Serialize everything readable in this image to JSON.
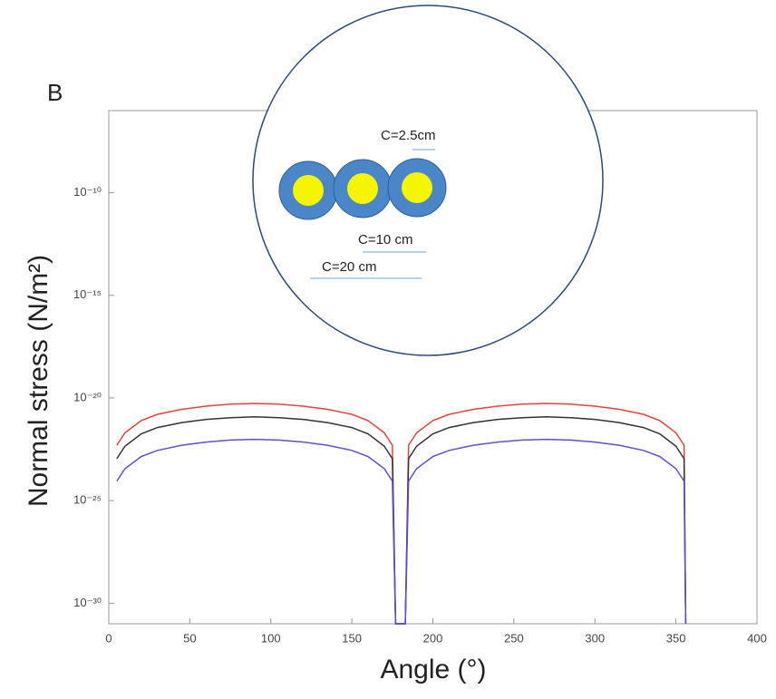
{
  "chart_data": {
    "type": "line",
    "panel_label": "B",
    "xlabel": "Angle (°)",
    "ylabel": "Normal stress (N/m²)",
    "x": [
      5,
      10,
      20,
      30,
      45,
      60,
      75,
      90,
      105,
      120,
      135,
      150,
      160,
      170,
      175,
      177,
      183,
      185,
      190,
      200,
      210,
      225,
      240,
      255,
      270,
      285,
      300,
      315,
      330,
      340,
      350,
      355,
      356
    ],
    "series": [
      {
        "color": "#e8413c",
        "values": [
          5e-23,
          2e-22,
          7.9e-22,
          1.6e-21,
          2.8e-21,
          4e-21,
          5e-21,
          5.4e-21,
          5e-21,
          4e-21,
          2.8e-21,
          1.6e-21,
          7.9e-22,
          2e-22,
          5e-23,
          1e-31,
          1e-31,
          5e-23,
          2e-22,
          7.9e-22,
          1.6e-21,
          2.8e-21,
          4e-21,
          5e-21,
          5.4e-21,
          5e-21,
          4e-21,
          2.8e-21,
          1.6e-21,
          7.9e-22,
          2e-22,
          5e-23,
          1e-31
        ]
      },
      {
        "color": "#333333",
        "values": [
          1.1e-23,
          4.5e-23,
          1.8e-22,
          3.6e-22,
          6.3e-22,
          9e-22,
          1.1e-21,
          1.2e-21,
          1.1e-21,
          9e-22,
          6.3e-22,
          3.6e-22,
          1.8e-22,
          4.5e-23,
          1.1e-23,
          1e-31,
          1e-31,
          1.1e-23,
          4.5e-23,
          1.8e-22,
          3.6e-22,
          6.3e-22,
          9e-22,
          1.1e-21,
          1.2e-21,
          1.1e-21,
          9e-22,
          6.3e-22,
          3.6e-22,
          1.8e-22,
          4.5e-23,
          1.1e-23,
          1e-31
        ]
      },
      {
        "color": "#5b4fd6",
        "values": [
          8.9e-25,
          3.6e-24,
          1.4e-23,
          2.8e-23,
          5e-23,
          7.1e-23,
          8.9e-23,
          9.6e-23,
          8.9e-23,
          7.1e-23,
          5e-23,
          2.8e-23,
          1.4e-23,
          3.6e-24,
          8.9e-25,
          1e-31,
          1e-31,
          8.9e-25,
          3.6e-24,
          1.4e-23,
          2.8e-23,
          5e-23,
          7.1e-23,
          8.9e-23,
          9.6e-23,
          8.9e-23,
          7.1e-23,
          5e-23,
          2.8e-23,
          1.4e-23,
          3.6e-24,
          8.9e-25,
          1e-31
        ]
      }
    ],
    "xlim": [
      0,
      400
    ],
    "xticks": [
      0,
      50,
      100,
      150,
      200,
      250,
      300,
      350,
      400
    ],
    "ylim": [
      1e-31,
      1e-06
    ],
    "ylog": true,
    "yticks": [
      {
        "value": 1e-30,
        "label": "10⁻³⁰"
      },
      {
        "value": 1e-25,
        "label": "10⁻²⁵"
      },
      {
        "value": 1e-20,
        "label": "10⁻²⁰"
      },
      {
        "value": 1e-15,
        "label": "10⁻¹⁵"
      },
      {
        "value": 1e-10,
        "label": "10⁻¹⁰"
      }
    ],
    "inset_labels": [
      "C=2.5cm",
      "C=10 cm",
      "C=20 cm"
    ]
  }
}
